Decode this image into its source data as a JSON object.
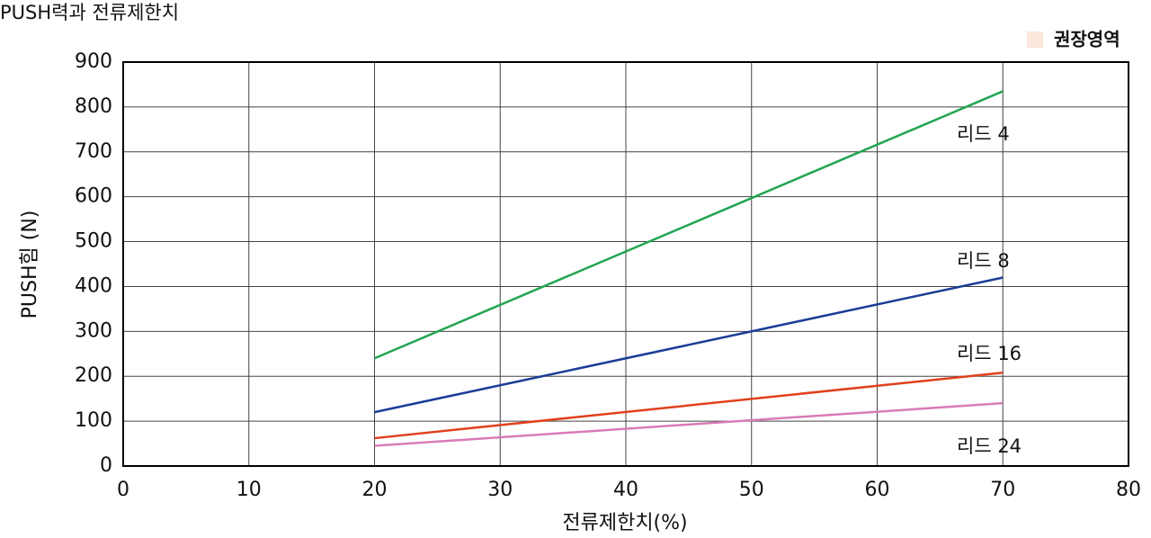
{
  "chart_data": {
    "type": "line",
    "title": "PUSH력과 전류제한치",
    "x_label": "전류제한치(%)",
    "y_label": "PUSH힘 (N)",
    "x": [
      20,
      70
    ],
    "series": [
      {
        "name": "리드 4",
        "color": "#22a552",
        "values": [
          240,
          835
        ]
      },
      {
        "name": "리드 8",
        "color": "#1a3e96",
        "values": [
          120,
          420
        ]
      },
      {
        "name": "리드 16",
        "color": "#e0401e",
        "values": [
          62,
          208
        ]
      },
      {
        "name": "리드 24",
        "color": "#d97bb6",
        "values": [
          45,
          140
        ]
      }
    ],
    "recommended_region": {
      "label": "권장영역",
      "color": "#fde6dc"
    },
    "xlim": [
      0,
      80
    ],
    "xticks": [
      0,
      10,
      20,
      30,
      40,
      50,
      60,
      70,
      80
    ],
    "ylim": [
      0,
      900
    ],
    "yticks": [
      0,
      100,
      200,
      300,
      400,
      500,
      600,
      700,
      800,
      900
    ],
    "grid": true
  }
}
